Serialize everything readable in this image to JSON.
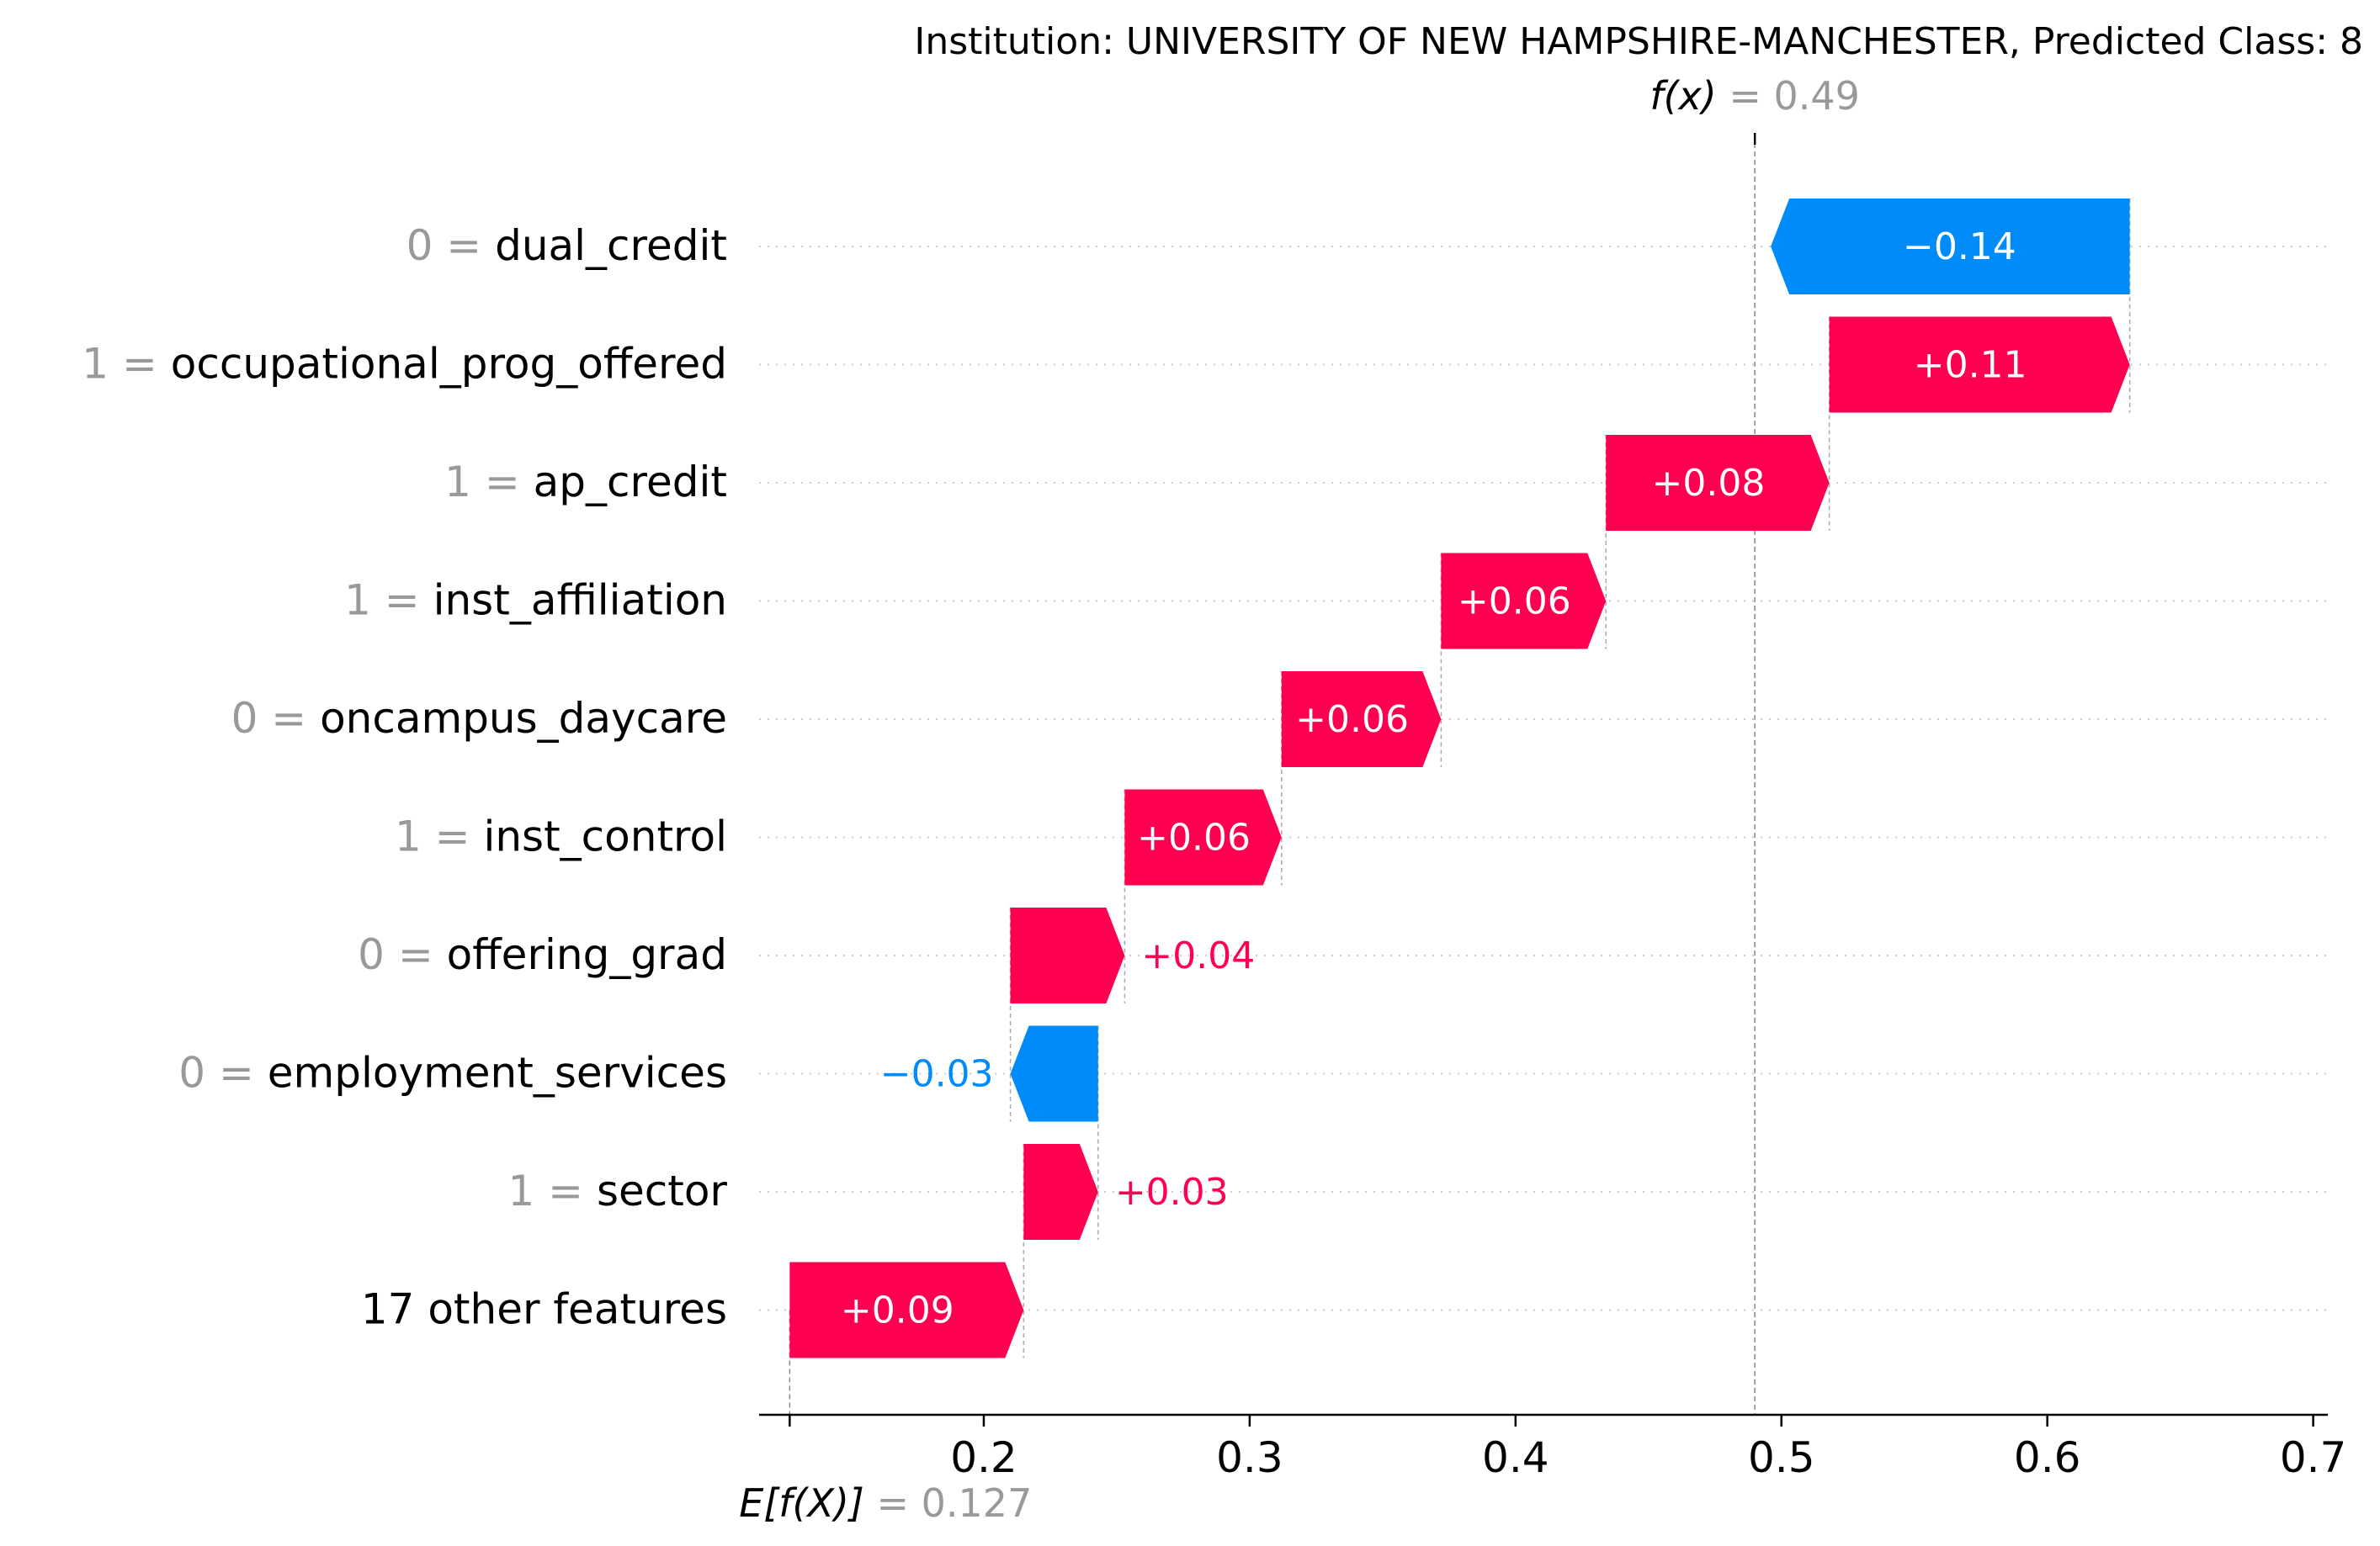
{
  "chart_data": {
    "type": "waterfall",
    "title": "Institution: UNIVERSITY OF NEW HAMPSHIRE-MANCHESTER, Predicted Class: 8",
    "fx_label": "f(x)",
    "fx_value": "0.49",
    "fx": 0.49,
    "efx_label": "E[f(X)]",
    "efx_value": "0.127",
    "efx": 0.127,
    "xlim": [
      0.1155,
      0.7055
    ],
    "xticks": [
      0.2,
      0.3,
      0.4,
      0.5,
      0.6,
      0.7
    ],
    "xtick_labels": [
      "0.2",
      "0.3",
      "0.4",
      "0.5",
      "0.6",
      "0.7"
    ],
    "rows": [
      {
        "value_text": "0",
        "feature": "dual_credit",
        "shap": -0.135,
        "label": "−0.14"
      },
      {
        "value_text": "1",
        "feature": "occupational_prog_offered",
        "shap": 0.113,
        "label": "+0.11"
      },
      {
        "value_text": "1",
        "feature": "ap_credit",
        "shap": 0.084,
        "label": "+0.08"
      },
      {
        "value_text": "1",
        "feature": "inst_affiliation",
        "shap": 0.062,
        "label": "+0.06"
      },
      {
        "value_text": "0",
        "feature": "oncampus_daycare",
        "shap": 0.06,
        "label": "+0.06"
      },
      {
        "value_text": "1",
        "feature": "inst_control",
        "shap": 0.059,
        "label": "+0.06"
      },
      {
        "value_text": "0",
        "feature": "offering_grad",
        "shap": 0.043,
        "label": "+0.04"
      },
      {
        "value_text": "0",
        "feature": "employment_services",
        "shap": -0.033,
        "label": "−0.03"
      },
      {
        "value_text": "1",
        "feature": "sector",
        "shap": 0.028,
        "label": "+0.03"
      },
      {
        "value_text": "",
        "feature": "17 other features",
        "shap": 0.088,
        "label": "+0.09"
      }
    ],
    "colors": {
      "positive": "#ff0051",
      "negative": "#008bfb",
      "feature_value": "#999999",
      "axis": "#000000",
      "grid": "#cccccc"
    }
  }
}
